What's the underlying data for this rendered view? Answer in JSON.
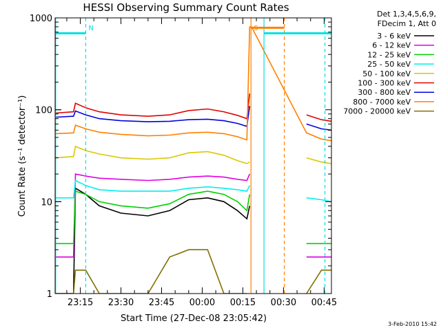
{
  "chart_data": {
    "type": "line",
    "title": "HESSI Observing Summary Count Rates",
    "xlabel": "Start Time (27-Dec-08 23:05:42)",
    "ylabel": "Count Rate (s⁻¹ detector⁻¹)",
    "yscale": "log",
    "ylim": [
      1,
      1000
    ],
    "yticks": [
      {
        "v": 1,
        "label": "1"
      },
      {
        "v": 10,
        "label": "10"
      },
      {
        "v": 100,
        "label": "100"
      },
      {
        "v": 1000,
        "label": "1000"
      }
    ],
    "xlim_min": [
      1385.7,
      1487.7
    ],
    "xticks": [
      {
        "v": 1395,
        "label": "23:15"
      },
      {
        "v": 1410,
        "label": "23:30"
      },
      {
        "v": 1425,
        "label": "23:45"
      },
      {
        "v": 1440,
        "label": "00:00"
      },
      {
        "v": 1455,
        "label": "00:15"
      },
      {
        "v": 1470,
        "label": "00:30"
      },
      {
        "v": 1485,
        "label": "00:45"
      }
    ],
    "legend": {
      "placement": "outside-right",
      "header": [
        "Det 1,3,4,5,6,9,",
        "FDecim 1, Att 0"
      ]
    },
    "series": [
      {
        "name": "3 - 6 keV",
        "color": "#000000",
        "x": [
          1385.7,
          1392.5,
          1393.2,
          1397,
          1402,
          1410,
          1420,
          1428,
          1435,
          1442,
          1448,
          1453,
          1456.5,
          1457.5,
          1458.2,
          1478.5,
          1484,
          1487.7
        ],
        "y": [
          1,
          1,
          14,
          12,
          9,
          7.5,
          7,
          8,
          10.5,
          11,
          10,
          8,
          6.5,
          9,
          null,
          null,
          null,
          null
        ]
      },
      {
        "name": "6 - 12 keV",
        "color": "#e000e0",
        "x": [
          1385.7,
          1392.5,
          1393.2,
          1397,
          1402,
          1410,
          1420,
          1428,
          1435,
          1442,
          1448,
          1453,
          1456.5,
          1457.5,
          1458.2,
          1478.5,
          1484,
          1487.7
        ],
        "y": [
          2.5,
          2.5,
          20,
          19,
          18,
          17.5,
          17,
          17.5,
          18.5,
          19,
          18.5,
          17.5,
          17,
          20,
          null,
          2.5,
          2.5,
          2.5
        ]
      },
      {
        "name": "12 - 25 keV",
        "color": "#00d000",
        "x": [
          1385.7,
          1392.5,
          1393.2,
          1397,
          1402,
          1410,
          1420,
          1428,
          1435,
          1442,
          1448,
          1453,
          1456.5,
          1457.5,
          1458.2,
          1478.5,
          1484,
          1487.7
        ],
        "y": [
          3.5,
          3.5,
          13,
          12,
          10,
          9,
          8.5,
          9.5,
          12,
          13,
          12,
          10,
          8,
          12,
          null,
          3.5,
          3.5,
          3.5
        ]
      },
      {
        "name": "25 - 50 keV",
        "color": "#00f0f0",
        "x": [
          1385.7,
          1392.5,
          1393.2,
          1397,
          1402,
          1410,
          1420,
          1428,
          1435,
          1442,
          1448,
          1453,
          1456.5,
          1457.5,
          1458.2,
          1478.5,
          1484,
          1487.7
        ],
        "y": [
          11,
          11,
          17,
          15,
          13.5,
          13,
          13,
          13,
          14,
          14.5,
          14,
          13.5,
          13,
          15,
          null,
          11,
          10.5,
          10
        ]
      },
      {
        "name": "50 - 100 keV",
        "color": "#d8c800",
        "x": [
          1385.7,
          1392.5,
          1393.2,
          1397,
          1402,
          1410,
          1420,
          1428,
          1435,
          1442,
          1448,
          1453,
          1456.5,
          1457.5,
          1458.2,
          1478.5,
          1484,
          1487.7
        ],
        "y": [
          30,
          31,
          40,
          36,
          33,
          30,
          29,
          30,
          34,
          35,
          32,
          28,
          26,
          27,
          null,
          30,
          27,
          26
        ]
      },
      {
        "name": "100 - 300 keV",
        "color": "#e00000",
        "x": [
          1385.7,
          1392.5,
          1393.2,
          1397,
          1402,
          1410,
          1420,
          1428,
          1435,
          1442,
          1448,
          1453,
          1456.5,
          1457.5,
          1458.2,
          1478.5,
          1484,
          1487.7
        ],
        "y": [
          92,
          95,
          118,
          105,
          95,
          88,
          85,
          88,
          98,
          102,
          95,
          87,
          80,
          150,
          null,
          88,
          78,
          75
        ]
      },
      {
        "name": "300 - 800 keV",
        "color": "#0000e0",
        "x": [
          1385.7,
          1392.5,
          1393.2,
          1397,
          1402,
          1410,
          1420,
          1428,
          1435,
          1442,
          1448,
          1453,
          1456.5,
          1457.5,
          1458.2,
          1478.5,
          1484,
          1487.7
        ],
        "y": [
          83,
          85,
          97,
          88,
          80,
          76,
          74,
          75,
          78,
          79,
          76,
          71,
          66,
          110,
          null,
          70,
          62,
          60
        ]
      },
      {
        "name": "800 - 7000 keV",
        "color": "#ff8000",
        "x": [
          1385.7,
          1392.5,
          1393.2,
          1397,
          1402,
          1410,
          1420,
          1428,
          1435,
          1442,
          1448,
          1453,
          1456.5,
          1457.5,
          1458.2,
          1478.5,
          1484,
          1487.7
        ],
        "y": [
          55,
          56,
          68,
          62,
          57,
          54,
          52,
          53,
          56,
          57,
          55,
          51,
          47,
          800,
          800,
          56,
          48,
          46
        ]
      },
      {
        "name": "7000 - 20000 keV",
        "color": "#807000",
        "x": [
          1385.7,
          1392.5,
          1393.2,
          1397,
          1402,
          1410,
          1420,
          1428,
          1435,
          1442,
          1448,
          1453,
          1456.5,
          1457.5,
          1458.2,
          1478.5,
          1484,
          1487.7
        ],
        "y": [
          1,
          1,
          1.8,
          1.8,
          1,
          1,
          1,
          2.5,
          3,
          3,
          1,
          1,
          1,
          null,
          null,
          1,
          1.8,
          1.8
        ]
      }
    ],
    "markers": [
      {
        "label": "N",
        "color": "#00e0e0",
        "x": 1397,
        "style": "dashed"
      },
      {
        "label": "",
        "color": "#00e0e0",
        "x": 1385.9,
        "style": "solid"
      },
      {
        "label": "",
        "color": "#00e0e0",
        "x": 1462.8,
        "style": "solid"
      },
      {
        "label": "",
        "color": "#00e0e0",
        "x": 1485.3,
        "style": "dashed"
      },
      {
        "label": "S",
        "color": "#ff8000",
        "x": 1458.0,
        "style": "solid"
      },
      {
        "label": "",
        "color": "#ff8000",
        "x": 1470.3,
        "style": "dashed"
      }
    ],
    "bars": [
      {
        "color": "#00e0e0",
        "x0": 1385.7,
        "x1": 1397,
        "y": 680
      },
      {
        "color": "#00e0e0",
        "x0": 1462.8,
        "x1": 1487.7,
        "y": 680
      },
      {
        "color": "#ff8000",
        "x0": 1458.0,
        "x1": 1470.3,
        "y": 780
      }
    ]
  },
  "footer": {
    "timestamp": "3-Feb-2010 15:42"
  }
}
